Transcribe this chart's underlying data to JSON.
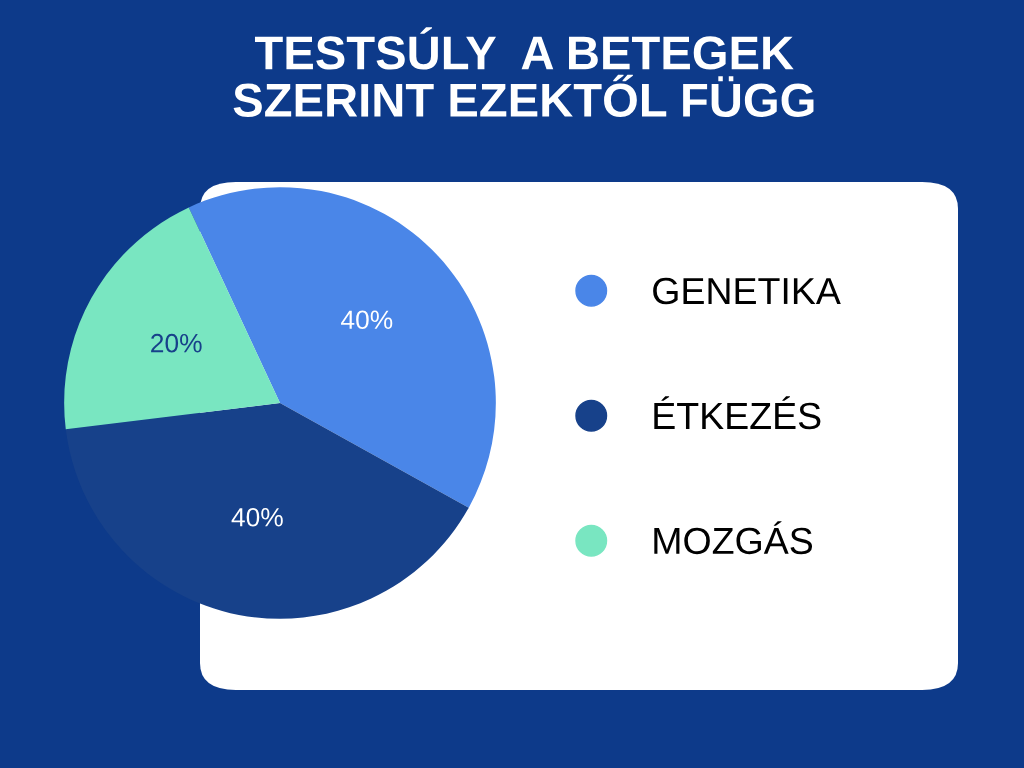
{
  "chart_data": {
    "type": "pie",
    "title": "TESTSÚLY  A BETEGEK\nSZERINT EZEKTŐL FÜGG",
    "categories": [
      "GENETIKA",
      "ÉTKEZÉS",
      "MOZGÁS"
    ],
    "values": [
      40,
      40,
      20
    ],
    "colors": [
      "#4a86e8",
      "#17418a",
      "#79e6c1"
    ],
    "value_labels": [
      "40%",
      "40%",
      "20%"
    ],
    "legend": "right"
  }
}
